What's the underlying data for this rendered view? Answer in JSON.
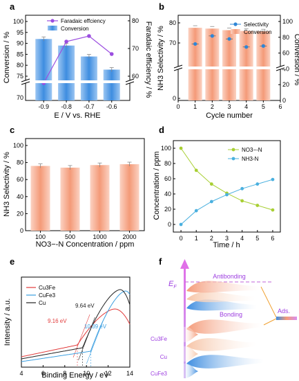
{
  "chart_data": [
    {
      "panel": "a",
      "type": "bar",
      "categories": [
        "-0.9",
        "-0.8",
        "-0.7",
        "-0.6"
      ],
      "xlabel": "E / V vs. RHE",
      "ylabel": "Conversion / %",
      "y2label": "Faradaic efficiency / %",
      "ylim_display": [
        70,
        100
      ],
      "y2lim": [
        50,
        80
      ],
      "yticks": [
        "70",
        "75",
        "80",
        "85",
        "90",
        "95",
        "100"
      ],
      "y2ticks": [
        "60",
        "70",
        "80"
      ],
      "axis_break": true,
      "legend": "top-center",
      "series": [
        {
          "name": "Faradaic effciency",
          "type": "line",
          "axis": "right",
          "values": [
            57.5,
            72.5,
            74.5,
            68.0
          ],
          "color": "#9b4de0"
        },
        {
          "name": "Conversion",
          "type": "bar",
          "axis": "left",
          "values": [
            92,
            89,
            84,
            78
          ],
          "color": "#3e8de0"
        }
      ]
    },
    {
      "panel": "b",
      "type": "bar",
      "x": [
        1,
        2,
        3,
        4,
        5
      ],
      "xlabel": "Cycle number",
      "ylabel": "NH3 Selectivity / %",
      "y2label": "Conversion / %",
      "xticks": [
        "0",
        "1",
        "2",
        "3",
        "4",
        "5",
        "6"
      ],
      "yticks": [
        "0",
        "70",
        "80"
      ],
      "y2ticks": [
        "0",
        "20",
        "40",
        "60",
        "80",
        "100"
      ],
      "axis_break": true,
      "legend": "top-right",
      "series": [
        {
          "name": "Selectivity",
          "type": "scatter",
          "axis": "left",
          "values": [
            69.5,
            73.5,
            72.0,
            68.0,
            68.5
          ],
          "color": "#2e86d6"
        },
        {
          "name": "Conversion",
          "type": "bar",
          "axis": "right",
          "values": [
            92,
            91,
            89,
            88,
            87.5
          ],
          "color": "#f6a98a"
        }
      ]
    },
    {
      "panel": "c",
      "type": "bar",
      "categories": [
        "100",
        "500",
        "1000",
        "2000"
      ],
      "xlabel": "NO3−-N Concentration / ppm",
      "ylabel": "NH3 Selectivity / %",
      "ylim": [
        0,
        100
      ],
      "yticks": [
        "0",
        "20",
        "40",
        "60",
        "80",
        "100"
      ],
      "series": [
        {
          "name": "Selectivity",
          "values": [
            76,
            74,
            77,
            78
          ],
          "color": "#f6a98a"
        }
      ]
    },
    {
      "panel": "d",
      "type": "line",
      "x": [
        0,
        1,
        2,
        3,
        4,
        5,
        6
      ],
      "xlabel": "Time / h",
      "ylabel": "Concentration / ppm",
      "xlim": [
        -0.5,
        6.5
      ],
      "ylim": [
        -10,
        110
      ],
      "xticks": [
        "0",
        "1",
        "2",
        "3",
        "4",
        "5",
        "6"
      ],
      "yticks": [
        "0",
        "20",
        "40",
        "60",
        "80",
        "100"
      ],
      "legend": "top-right",
      "series": [
        {
          "name": "NO3−-N",
          "values": [
            100,
            71,
            53,
            41,
            31,
            25,
            19
          ],
          "color": "#a8cf33"
        },
        {
          "name": "NH3-N",
          "values": [
            0,
            18,
            30,
            39,
            47,
            53,
            59
          ],
          "color": "#4ab0df"
        }
      ]
    },
    {
      "panel": "e",
      "type": "line",
      "xlabel": "Binding Energy / eV",
      "ylabel": "Intensity / a.u.",
      "xlim": [
        4,
        14
      ],
      "xticks": [
        "4",
        "6",
        "8",
        "10",
        "12",
        "14"
      ],
      "legend": "top-left",
      "series": [
        {
          "name": "Cu3Fe",
          "color": "#e23b3b",
          "annotation": "9.16 eV",
          "onset": 9.16
        },
        {
          "name": "CuFe3",
          "color": "#3a9ee0",
          "annotation": "10.39 eV",
          "onset": 10.39
        },
        {
          "name": "Cu",
          "color": "#222222",
          "annotation": "9.64 eV",
          "onset": 9.64
        }
      ]
    }
  ],
  "labels": {
    "a": "a",
    "b": "b",
    "c": "c",
    "d": "d",
    "e": "e",
    "f": "f"
  },
  "panel_f": {
    "antibonding": "Antibonding",
    "bonding": "Bonding",
    "ads": "Ads.",
    "ef": "E",
    "ef_sub": "F",
    "cu3fe": "Cu3Fe",
    "cu": "Cu",
    "cufe3": "CuFe3"
  }
}
